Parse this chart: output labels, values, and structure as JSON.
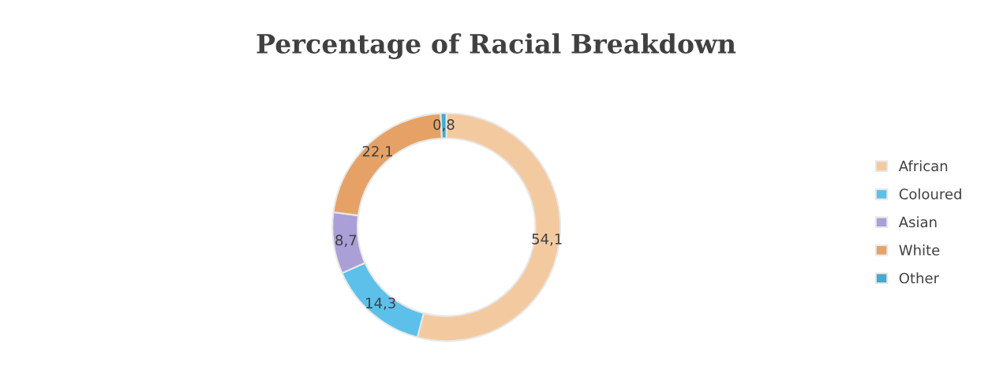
{
  "chart_data": {
    "type": "donut",
    "title": "Percentage of Racial Breakdown",
    "categories": [
      "African",
      "Coloured",
      "Asian",
      "White",
      "Other"
    ],
    "values": [
      54.1,
      14.3,
      8.7,
      22.1,
      0.8
    ],
    "value_labels": [
      "54,1",
      "14,3",
      "8,7",
      "22,1",
      "0,8"
    ],
    "colors": [
      "#f3caa0",
      "#5cc0ea",
      "#ab9fd8",
      "#e6a266",
      "#45aacb"
    ],
    "legend": "right"
  }
}
